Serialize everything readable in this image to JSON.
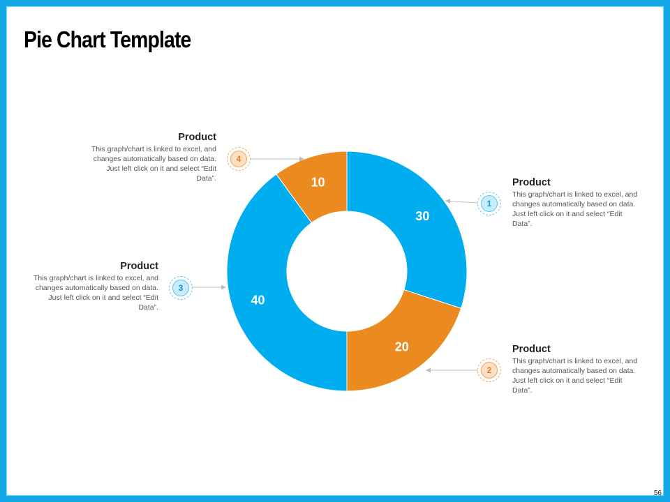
{
  "slide": {
    "title": "Pie Chart Template",
    "page_number": "56"
  },
  "colors": {
    "frame": "#12a9e6",
    "blue": "#00adef",
    "orange": "#eb8a1e",
    "arrow": "#bdbdbd"
  },
  "chart_data": {
    "type": "pie",
    "style": "donut",
    "categories": [
      "1",
      "2",
      "3",
      "4"
    ],
    "values": [
      30,
      20,
      40,
      10
    ],
    "slice_colors": [
      "#00adef",
      "#eb8a1e",
      "#00adef",
      "#eb8a1e"
    ],
    "data_labels": [
      "30",
      "20",
      "40",
      "10"
    ]
  },
  "callouts": [
    {
      "number": "1",
      "title": "Product",
      "description": "This graph/chart is linked to excel, and changes automatically based on data. Just left click on it and select “Edit Data”.",
      "color": "blue"
    },
    {
      "number": "2",
      "title": "Product",
      "description": "This graph/chart is linked to excel, and changes automatically based on data. Just left click on it and select “Edit Data”.",
      "color": "orange"
    },
    {
      "number": "3",
      "title": "Product",
      "description": "This graph/chart is linked to excel, and changes automatically based on data. Just left click on it and select “Edit Data”.",
      "color": "blue"
    },
    {
      "number": "4",
      "title": "Product",
      "description": "This graph/chart is linked to excel, and changes automatically based on data. Just left click on it and select “Edit Data”.",
      "color": "orange"
    }
  ]
}
